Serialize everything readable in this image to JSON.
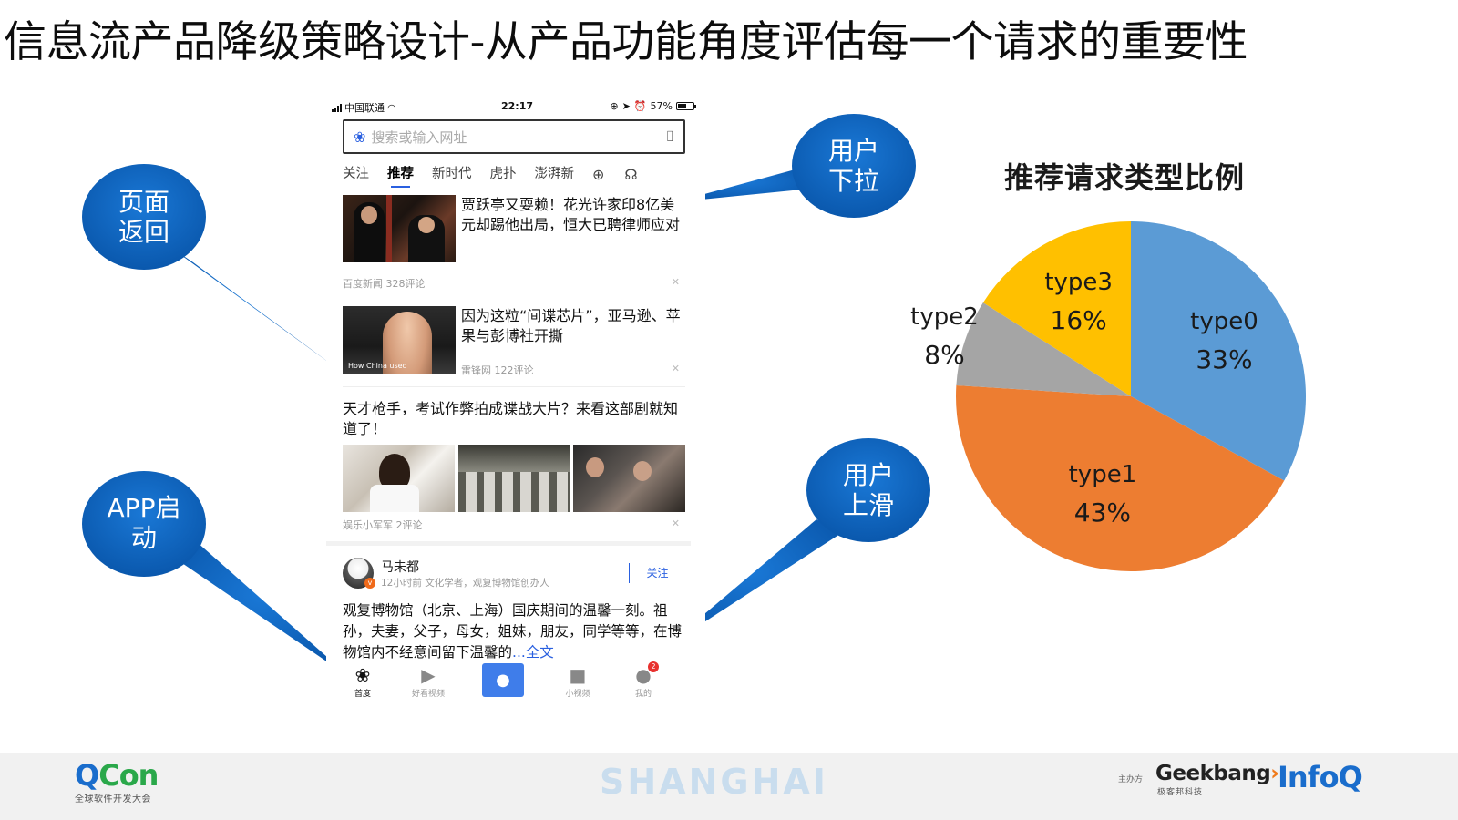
{
  "slide": {
    "title": "信息流产品降级策略设计-从产品功能角度评估每一个请求的重要性"
  },
  "callouts": [
    {
      "id": "page-back",
      "text": "页面\n返回",
      "color": "#0b64c1"
    },
    {
      "id": "pull-down",
      "text": "用户\n下拉",
      "color": "#0b64c1"
    },
    {
      "id": "app-launch",
      "text": "APP启\n动",
      "color": "#0b64c1"
    },
    {
      "id": "scroll-up",
      "text": "用户\n上滑",
      "color": "#0b64c1"
    }
  ],
  "phone": {
    "status": {
      "carrier": "中国联通",
      "time": "22:17",
      "battery": "57%",
      "battery_level": 0.57
    },
    "search": {
      "placeholder": "搜索或输入网址"
    },
    "tabs": [
      {
        "label": "关注",
        "active": false
      },
      {
        "label": "推荐",
        "active": true
      },
      {
        "label": "新时代",
        "active": false
      },
      {
        "label": "虎扑",
        "active": false
      },
      {
        "label": "澎湃新",
        "active": false
      }
    ],
    "feed": [
      {
        "headline": "贾跃亭又耍赖！花光许家印8亿美元却踢他出局，恒大已聘律师应对",
        "meta": "百度新闻  328评论"
      },
      {
        "headline": "因为这粒“间谍芯片”，亚马逊、苹果与彭博社开撕",
        "meta": "雷锋网  122评论",
        "thumb_caption": "How China used"
      },
      {
        "headline": "天才枪手，考试作弊拍成谍战大片？来看这部剧就知道了！",
        "meta": "娱乐小军军  2评论"
      }
    ],
    "post": {
      "author": "马未都",
      "author_meta": "12小时前 文化学者，观复博物馆创办人",
      "follow": "关注",
      "text": "观复博物馆（北京、上海）国庆期间的温馨一刻。祖孙，夫妻，父子，母女，姐妹，朋友，同学等等，在博物馆内不经意间留下温馨的",
      "more": "...全文"
    },
    "bottom_nav": [
      {
        "label": "首度",
        "icon": "baidu-paw-icon"
      },
      {
        "label": "好看视频",
        "icon": "play-icon"
      },
      {
        "label": "",
        "icon": "microphone-icon"
      },
      {
        "label": "小视频",
        "icon": "video-camera-icon"
      },
      {
        "label": "我的",
        "icon": "user-icon",
        "badge": "2"
      }
    ],
    "close_glyph": "✕"
  },
  "chart_data": {
    "type": "pie",
    "title": "推荐请求类型比例",
    "slices": [
      {
        "label": "type0",
        "value": 33,
        "display": "33%",
        "color": "#5b9bd5"
      },
      {
        "label": "type1",
        "value": 43,
        "display": "43%",
        "color": "#ed7d31"
      },
      {
        "label": "type2",
        "value": 8,
        "display": "8%",
        "color": "#a5a5a5"
      },
      {
        "label": "type3",
        "value": 16,
        "display": "16%",
        "color": "#ffc000"
      }
    ],
    "start_angle_deg": 0,
    "direction": "clockwise",
    "legend": "none"
  },
  "footer": {
    "qcon_logo_a": "Q",
    "qcon_logo_b": "Con",
    "qcon_sub": "全球软件开发大会",
    "city": "SHANGHAI",
    "host_label": "主办方",
    "geek_a": "Geek",
    "geek_b": "bang",
    "geek_sub": "极客邦科技",
    "infoq": "InfoQ"
  }
}
